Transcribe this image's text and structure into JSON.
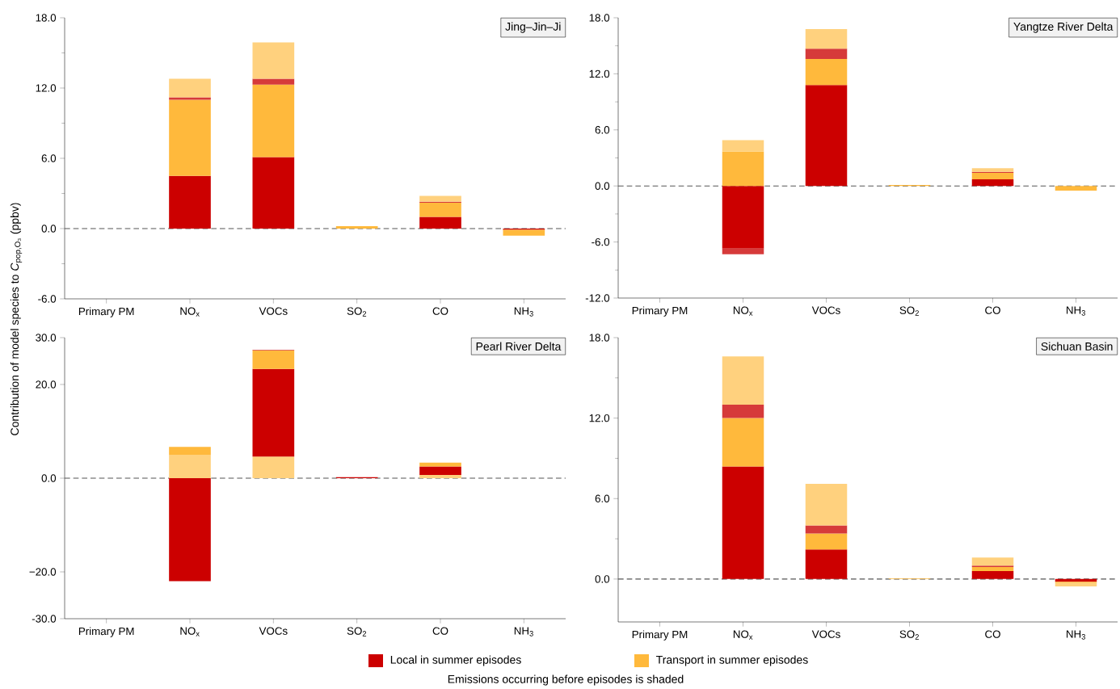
{
  "chart_data": [
    {
      "type": "bar",
      "stacked": true,
      "title": "Jing–Jin–Ji",
      "ylabel": "Contribution of model species to *C*$_{pop,O₃}$ (ppbv)",
      "categories": [
        "Primary PM",
        "NO$_{x}$",
        "VOCs",
        "SO$_{2}$",
        "CO",
        "NH$_{3}$"
      ],
      "series": [
        {
          "name": "Local in summer episodes",
          "color": "#cc0000",
          "values": [
            null,
            4.5,
            6.1,
            null,
            1.0,
            -0.1
          ]
        },
        {
          "name": "Transport in summer episodes",
          "color": "#ffb93c",
          "values": [
            null,
            6.5,
            6.2,
            0.2,
            1.2,
            -0.5
          ]
        },
        {
          "color": "#d63a3a",
          "values": [
            null,
            0.2,
            0.5,
            null,
            0.1,
            null
          ]
        },
        {
          "color": "#ffd17e",
          "values": [
            null,
            1.6,
            3.1,
            null,
            0.5,
            null
          ]
        }
      ],
      "ylim": [
        -6,
        18
      ],
      "yticks": [
        {
          "value": -6,
          "label": "-6.0"
        },
        {
          "value": 0,
          "label": "0.0"
        },
        {
          "value": 6,
          "label": "6.0"
        },
        {
          "value": 12,
          "label": "12.0"
        },
        {
          "value": 18,
          "label": "18.0"
        }
      ],
      "ref_lines": [
        {
          "axis": "y",
          "value": 0,
          "color": "#555555",
          "line_style": "dashed"
        }
      ],
      "legend": "bottom",
      "annotations": [
        "Emissions occurring before episodes is shaded"
      ]
    },
    {
      "type": "bar",
      "stacked": true,
      "title": "Yangtze River Delta",
      "categories": [
        "Primary PM",
        "NO$_{x}$",
        "VOCs",
        "SO$_{2}$",
        "CO",
        "NH$_{3}$"
      ],
      "series": [
        {
          "color": "#cc0000",
          "values": [
            null,
            -6.7,
            10.8,
            null,
            0.7,
            null
          ]
        },
        {
          "color": "#ffb93c",
          "values": [
            null,
            3.7,
            2.8,
            0.1,
            0.7,
            -0.5
          ]
        },
        {
          "color": "#d63a3a",
          "values": [
            null,
            -0.6,
            1.1,
            null,
            0.1,
            null
          ]
        },
        {
          "color": "#ffd17e",
          "values": [
            null,
            1.2,
            2.1,
            null,
            0.4,
            null
          ]
        }
      ],
      "ylim": [
        -12,
        18
      ],
      "yticks": [
        {
          "value": -12,
          "label": "-12.0"
        },
        {
          "value": -6,
          "label": "-6.0"
        },
        {
          "value": 0,
          "label": "0.0"
        },
        {
          "value": 6,
          "label": "6.0"
        },
        {
          "value": 12,
          "label": "12.0"
        },
        {
          "value": 18,
          "label": "18.0"
        }
      ],
      "ref_lines": [
        {
          "axis": "y",
          "value": 0,
          "color": "#555555",
          "line_style": "dashed"
        }
      ]
    },
    {
      "type": "bar",
      "stacked": true,
      "title": "Pearl River Delta",
      "categories": [
        "Primary PM",
        "NO$_{x}$",
        "VOCs",
        "SO$_{2}$",
        "CO",
        "NH$_{3}$"
      ],
      "series": [
        {
          "color": "#ffd17e",
          "values": [
            null,
            4.9,
            4.6,
            null,
            0.7,
            null
          ]
        },
        {
          "color": "#cc0000",
          "values": [
            null,
            -22.0,
            18.7,
            0.2,
            1.8,
            null
          ]
        },
        {
          "color": "#ffb93c",
          "values": [
            null,
            1.8,
            4.0,
            null,
            0.8,
            null
          ]
        },
        {
          "color": "#d63a3a",
          "values": [
            null,
            null,
            0.1,
            null,
            null,
            null
          ]
        }
      ],
      "ylim": [
        -30,
        30
      ],
      "yticks": [
        {
          "value": -30,
          "label": "-30.0"
        },
        {
          "value": -20,
          "label": "−20.0"
        },
        {
          "value": 0,
          "label": "0.0"
        },
        {
          "value": 20,
          "label": "20.0"
        },
        {
          "value": 30,
          "label": "30.0"
        }
      ],
      "ref_lines": [
        {
          "axis": "y",
          "value": 0,
          "color": "#555555",
          "line_style": "dashed"
        }
      ]
    },
    {
      "type": "bar",
      "stacked": true,
      "title": "Sichuan Basin",
      "categories": [
        "Primary PM",
        "NO$_{x}$",
        "VOCs",
        "SO$_{2}$",
        "CO",
        "NH$_{3}$"
      ],
      "series": [
        {
          "color": "#cc0000",
          "values": [
            null,
            8.4,
            2.2,
            null,
            0.6,
            -0.2
          ]
        },
        {
          "color": "#ffb93c",
          "values": [
            null,
            3.6,
            1.2,
            0.05,
            0.3,
            -0.1
          ]
        },
        {
          "color": "#d63a3a",
          "values": [
            null,
            1.0,
            0.6,
            null,
            0.1,
            null
          ]
        },
        {
          "color": "#ffd17e",
          "values": [
            null,
            3.6,
            3.1,
            null,
            0.6,
            -0.25
          ]
        }
      ],
      "ylim": [
        -3.2,
        18
      ],
      "yticks": [
        {
          "value": 0,
          "label": "0.0"
        },
        {
          "value": 6,
          "label": "6.0"
        },
        {
          "value": 12,
          "label": "12.0"
        },
        {
          "value": 18,
          "label": "18.0"
        }
      ],
      "ref_lines": [
        {
          "axis": "y",
          "value": 0,
          "color": "#555555",
          "line_style": "dashed"
        }
      ]
    }
  ]
}
